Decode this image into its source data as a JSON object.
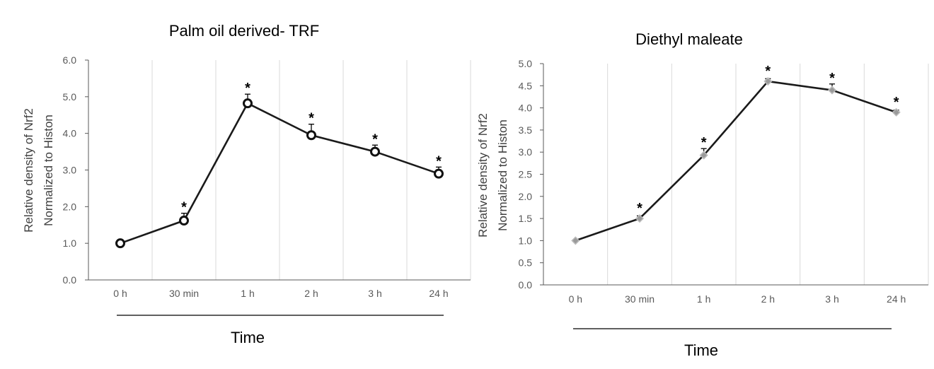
{
  "chart_data": [
    {
      "type": "line",
      "title": "Palm oil derived- TRF",
      "xlabel": "Time",
      "ylabel_lines": [
        "Relative density of Nrf2",
        "Normalized to Histon"
      ],
      "categories": [
        "0 h",
        "30 min",
        "1 h",
        "2 h",
        "3 h",
        "24 h"
      ],
      "yticks": [
        "0.0",
        "1.0",
        "2.0",
        "3.0",
        "4.0",
        "5.0",
        "6.0"
      ],
      "ylim": [
        0,
        6
      ],
      "series": [
        {
          "values": [
            1.0,
            1.62,
            4.82,
            3.95,
            3.5,
            2.9
          ],
          "errors": [
            0.0,
            0.2,
            0.25,
            0.3,
            0.18,
            0.18
          ],
          "significant": [
            false,
            true,
            true,
            true,
            true,
            true
          ],
          "marker": "circle-open",
          "color": "#1a1a1a"
        }
      ],
      "significance_symbol": "*",
      "grid": "vertical"
    },
    {
      "type": "line",
      "title": "Diethyl maleate",
      "xlabel": "Time",
      "ylabel_lines": [
        "Relative density of Nrf2",
        "Normalized to Histon"
      ],
      "categories": [
        "0 h",
        "30 min",
        "1 h",
        "2 h",
        "3 h",
        "24 h"
      ],
      "yticks": [
        "0.0",
        "0.5",
        "1.0",
        "1.5",
        "2.0",
        "2.5",
        "3.0",
        "3.5",
        "4.0",
        "4.5",
        "5.0"
      ],
      "ylim": [
        0,
        5
      ],
      "series": [
        {
          "values": [
            1.0,
            1.5,
            2.93,
            4.6,
            4.4,
            3.9
          ],
          "errors": [
            0.0,
            0.06,
            0.15,
            0.06,
            0.14,
            0.05
          ],
          "significant": [
            false,
            true,
            true,
            true,
            true,
            true
          ],
          "marker": "diamond",
          "color": "#1a1a1a"
        }
      ],
      "significance_symbol": "*",
      "grid": "vertical"
    }
  ]
}
